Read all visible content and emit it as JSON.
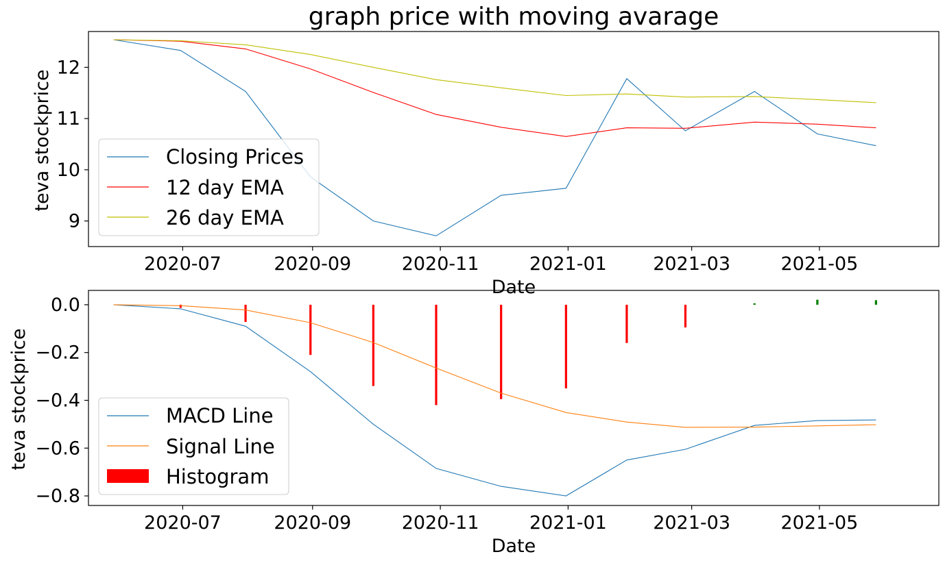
{
  "chart_data": [
    {
      "type": "line",
      "title": "graph price with moving avarage",
      "xlabel": "Date",
      "ylabel": "teva stockprice",
      "ylim": [
        8.5,
        12.7
      ],
      "yticks": [
        9,
        10,
        11,
        12
      ],
      "xtick_labels": [
        "2020-07",
        "2020-09",
        "2020-11",
        "2021-01",
        "2021-03",
        "2021-05"
      ],
      "xtick_dates": [
        "2020-07-01",
        "2020-09-01",
        "2020-11-01",
        "2021-01-01",
        "2021-03-01",
        "2021-05-01"
      ],
      "xlim": [
        "2020-05-17",
        "2021-06-27"
      ],
      "grid": false,
      "legend_position": "lower-left",
      "x": [
        "2020-05-29",
        "2020-06-30",
        "2020-07-31",
        "2020-08-31",
        "2020-09-30",
        "2020-10-30",
        "2020-11-30",
        "2020-12-31",
        "2021-01-29",
        "2021-02-26",
        "2021-03-31",
        "2021-04-30",
        "2021-05-28"
      ],
      "series": [
        {
          "name": "Closing Prices",
          "color": "#1f77b4",
          "values": [
            12.54,
            12.33,
            11.53,
            9.86,
            9.0,
            8.71,
            9.5,
            9.64,
            11.78,
            10.76,
            11.53,
            10.7,
            10.47
          ]
        },
        {
          "name": "12 day EMA",
          "color": "#ff0000",
          "values": [
            12.54,
            12.51,
            12.36,
            11.97,
            11.51,
            11.08,
            10.83,
            10.65,
            10.82,
            10.81,
            10.93,
            10.89,
            10.82
          ]
        },
        {
          "name": "26 day EMA",
          "color": "#bfbf00",
          "values": [
            12.54,
            12.52,
            12.44,
            12.25,
            12.0,
            11.76,
            11.6,
            11.45,
            11.48,
            11.42,
            11.43,
            11.37,
            11.31
          ]
        }
      ]
    },
    {
      "type": "line",
      "xlabel": "Date",
      "ylabel": "teva stockprice",
      "ylim": [
        -0.84,
        0.06
      ],
      "yticks": [
        0.0,
        -0.2,
        -0.4,
        -0.6,
        -0.8
      ],
      "ytick_labels": [
        "0.0",
        "−0.2",
        "−0.4",
        "−0.6",
        "−0.8"
      ],
      "xtick_labels": [
        "2020-07",
        "2020-09",
        "2020-11",
        "2021-01",
        "2021-03",
        "2021-05"
      ],
      "xtick_dates": [
        "2020-07-01",
        "2020-09-01",
        "2020-11-01",
        "2021-01-01",
        "2021-03-01",
        "2021-05-01"
      ],
      "xlim": [
        "2020-05-17",
        "2021-06-27"
      ],
      "grid": false,
      "legend_position": "lower-left",
      "x": [
        "2020-05-29",
        "2020-06-30",
        "2020-07-31",
        "2020-08-31",
        "2020-09-30",
        "2020-10-30",
        "2020-11-30",
        "2020-12-31",
        "2021-01-29",
        "2021-02-26",
        "2021-03-31",
        "2021-04-30",
        "2021-05-28"
      ],
      "series": [
        {
          "name": "MACD Line",
          "color": "#1f77b4",
          "values": [
            0.0,
            -0.017,
            -0.09,
            -0.28,
            -0.5,
            -0.685,
            -0.76,
            -0.8,
            -0.65,
            -0.605,
            -0.505,
            -0.485,
            -0.482
          ]
        },
        {
          "name": "Signal Line",
          "color": "#ff7f0e",
          "values": [
            0.0,
            -0.004,
            -0.022,
            -0.075,
            -0.158,
            -0.265,
            -0.37,
            -0.451,
            -0.491,
            -0.513,
            -0.512,
            -0.507,
            -0.502
          ]
        }
      ],
      "histogram": {
        "name": "Histogram",
        "x": [
          "2020-06-30",
          "2020-07-31",
          "2020-08-31",
          "2020-09-30",
          "2020-10-30",
          "2020-11-30",
          "2020-12-31",
          "2021-01-29",
          "2021-02-26",
          "2021-03-31",
          "2021-04-30",
          "2021-05-28"
        ],
        "values": [
          -0.013,
          -0.072,
          -0.21,
          -0.34,
          -0.42,
          -0.395,
          -0.35,
          -0.16,
          -0.095,
          0.006,
          0.021,
          0.019
        ],
        "positive_color": "#008000",
        "negative_color": "#ff0000"
      }
    }
  ]
}
